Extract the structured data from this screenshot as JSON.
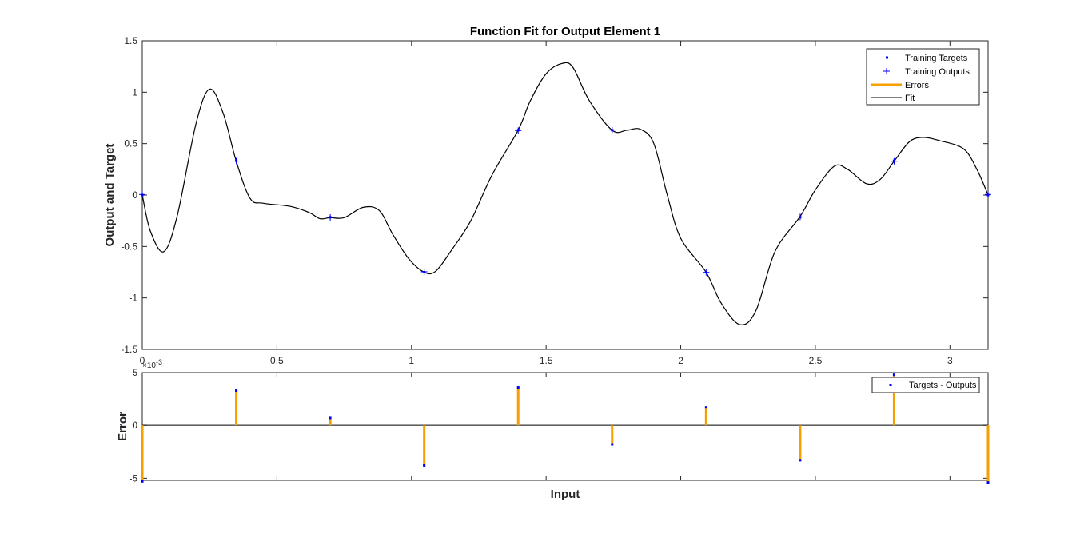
{
  "chart_data": [
    {
      "type": "line",
      "title": "Function Fit for Output Element 1",
      "xlabel": "",
      "ylabel": "Output and Target",
      "xlim": [
        0,
        3.1416
      ],
      "ylim": [
        -1.5,
        1.5
      ],
      "xticks": [
        0,
        0.5,
        1,
        1.5,
        2,
        2.5,
        3
      ],
      "xtick_labels": [
        "0",
        "0.5",
        "1",
        "1.5",
        "2",
        "2.5",
        "3"
      ],
      "yticks": [
        -1.5,
        -1,
        -0.5,
        0,
        0.5,
        1,
        1.5
      ],
      "ytick_labels": [
        "-1.5",
        "-1",
        "-0.5",
        "0",
        "0.5",
        "1",
        "1.5"
      ],
      "grid": false,
      "legend_position": "top-right",
      "legend": [
        "Training Targets",
        "Training Outputs",
        "Errors",
        "Fit"
      ],
      "series": [
        {
          "name": "Training Targets",
          "x": [
            0,
            0.3491,
            0.6981,
            1.0472,
            1.3963,
            1.7453,
            2.0944,
            2.4435,
            2.7925,
            3.1416
          ],
          "y": [
            0,
            0.3333,
            -0.2165,
            -0.75,
            0.6309,
            0.6309,
            -0.75,
            -0.2165,
            0.3333,
            0
          ]
        },
        {
          "name": "Training Outputs",
          "x": [
            0,
            0.3491,
            0.6981,
            1.0472,
            1.3963,
            1.7453,
            2.0944,
            2.4435,
            2.7925,
            3.1416
          ],
          "y": [
            0.0053,
            0.3299,
            -0.2173,
            -0.7462,
            0.6273,
            0.6327,
            -0.7517,
            -0.2132,
            0.3285,
            0.0053
          ]
        },
        {
          "name": "Fit",
          "x": [
            0,
            0.03,
            0.08,
            0.13,
            0.2,
            0.25,
            0.3,
            0.349,
            0.4,
            0.45,
            0.55,
            0.62,
            0.66,
            0.698,
            0.75,
            0.82,
            0.88,
            0.93,
            0.99,
            1.047,
            1.09,
            1.15,
            1.22,
            1.3,
            1.396,
            1.44,
            1.5,
            1.56,
            1.6,
            1.66,
            1.745,
            1.8,
            1.85,
            1.9,
            1.95,
            2.0,
            2.094,
            2.15,
            2.22,
            2.28,
            2.35,
            2.443,
            2.5,
            2.57,
            2.62,
            2.69,
            2.74,
            2.793,
            2.85,
            2.9,
            2.96,
            3.05,
            3.1,
            3.1416
          ],
          "y": [
            0,
            -0.35,
            -0.55,
            -0.2,
            0.7,
            1.03,
            0.8,
            0.33,
            -0.03,
            -0.08,
            -0.11,
            -0.17,
            -0.23,
            -0.22,
            -0.22,
            -0.12,
            -0.15,
            -0.38,
            -0.62,
            -0.75,
            -0.74,
            -0.53,
            -0.25,
            0.2,
            0.63,
            0.91,
            1.18,
            1.28,
            1.24,
            0.92,
            0.63,
            0.63,
            0.64,
            0.5,
            0.0,
            -0.42,
            -0.75,
            -1.05,
            -1.26,
            -1.12,
            -0.55,
            -0.21,
            0.05,
            0.28,
            0.25,
            0.11,
            0.15,
            0.33,
            0.52,
            0.56,
            0.53,
            0.45,
            0.25,
            0
          ]
        }
      ]
    },
    {
      "type": "bar",
      "title": "",
      "xlabel": "Input",
      "ylabel": "Error",
      "x_exponent_label": "×10^-3",
      "xlim": [
        0,
        3.1416
      ],
      "ylim": [
        -5.2,
        5.0
      ],
      "xticks": [
        0.5,
        1,
        1.5,
        2,
        2.5,
        3
      ],
      "yticks": [
        -5,
        0,
        5
      ],
      "ytick_labels": [
        "-5",
        "0",
        "5"
      ],
      "legend_position": "top-right",
      "legend": [
        "Targets - Outputs"
      ],
      "series": [
        {
          "name": "Targets - Outputs",
          "x": [
            0,
            0.3491,
            0.6981,
            1.0472,
            1.3963,
            1.7453,
            2.0944,
            2.4435,
            2.7925,
            3.1416
          ],
          "values": [
            -5.3,
            3.3,
            0.7,
            -3.8,
            3.6,
            -1.8,
            1.7,
            -3.3,
            4.8,
            -5.4
          ]
        }
      ]
    }
  ],
  "colors": {
    "targets": "#0000ff",
    "outputs": "#0000ff",
    "errors": "#f5a000",
    "fit": "#000000",
    "axes": "#262626"
  }
}
